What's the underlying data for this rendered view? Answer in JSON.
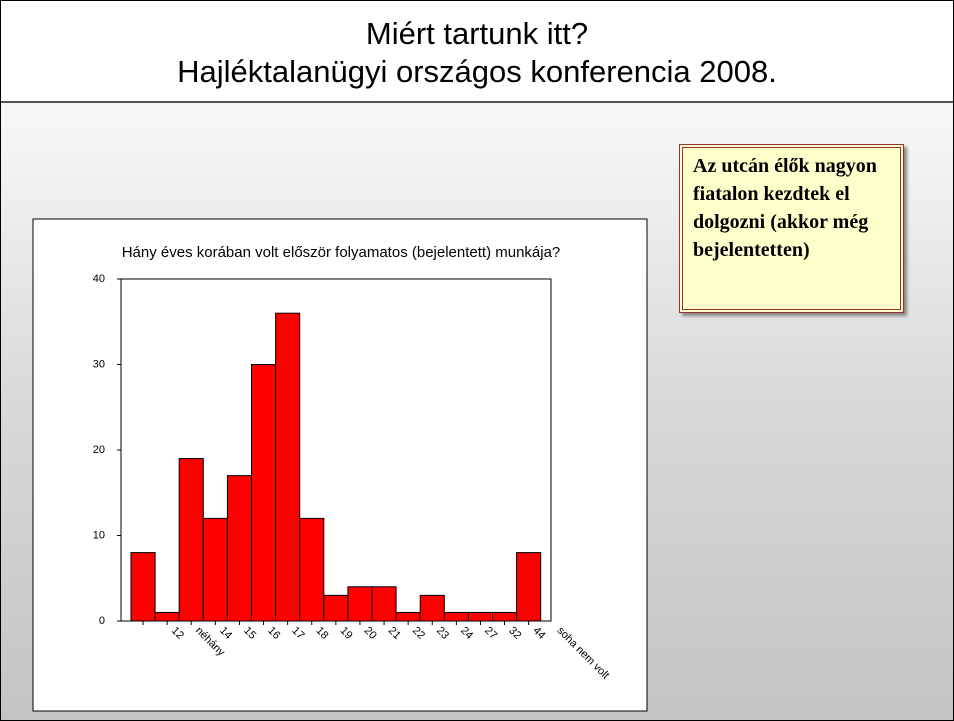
{
  "header": {
    "title": "Miért tartunk itt?",
    "subtitle": "Hajléktalanügyi országos konferencia 2008."
  },
  "callout": {
    "text": "Az utcán élők nagyon fiatalon kezdtek el dolgozni (akkor még bejelentetten)"
  },
  "chart_data": {
    "type": "bar",
    "title": "Hány éves korában volt először folyamatos (bejelentett) munkája?",
    "categories": [
      "12",
      "néhány",
      "14",
      "15",
      "16",
      "17",
      "18",
      "19",
      "20",
      "21",
      "22",
      "23",
      "24",
      "27",
      "32",
      "44",
      "soha nem volt"
    ],
    "values": [
      8,
      1,
      19,
      12,
      17,
      30,
      36,
      12,
      3,
      4,
      4,
      1,
      3,
      1,
      1,
      1,
      8
    ],
    "color": "#ff0000",
    "ylim": [
      0,
      40
    ],
    "yticks": [
      0,
      10,
      20,
      30,
      40
    ],
    "grid": false
  }
}
